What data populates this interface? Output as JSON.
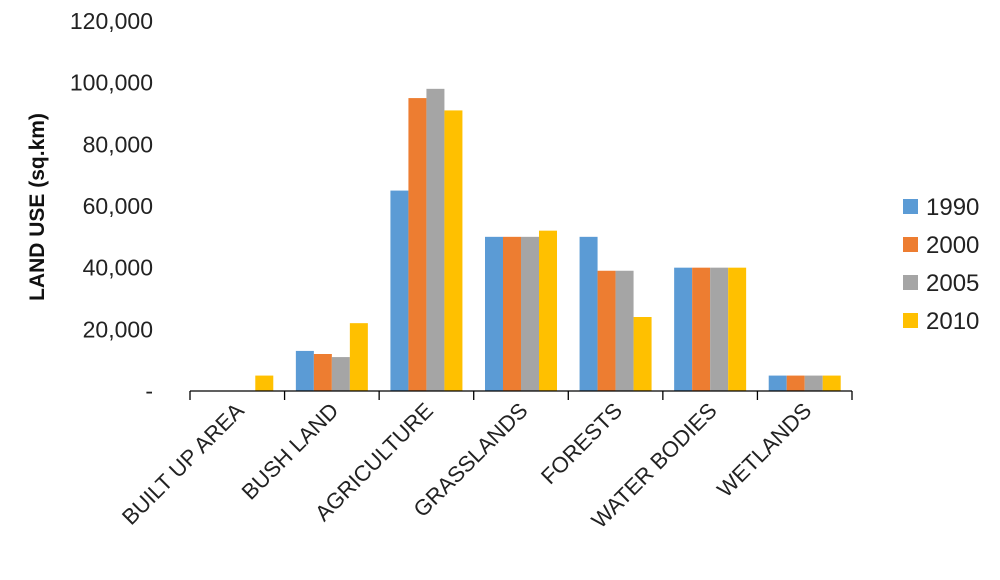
{
  "chart_data": {
    "type": "bar",
    "title": "",
    "xlabel": "",
    "ylabel": "LAND USE (sq.km)",
    "ylim": [
      0,
      120000
    ],
    "yticks": [
      0,
      20000,
      40000,
      60000,
      80000,
      100000,
      120000
    ],
    "ytick_labels": [
      "-",
      "20,000",
      "40,000",
      "60,000",
      "80,000",
      "100,000",
      "120,000"
    ],
    "grid": false,
    "legend_position": "right",
    "categories": [
      "BUILT UP AREA",
      "BUSH LAND",
      "AGRICULTURE",
      "GRASSLANDS",
      "FORESTS",
      "WATER BODIES",
      "WETLANDS"
    ],
    "series": [
      {
        "name": "1990",
        "color": "#5B9BD5",
        "values": [
          0,
          13000,
          65000,
          50000,
          50000,
          40000,
          5000
        ]
      },
      {
        "name": "2000",
        "color": "#ED7D31",
        "values": [
          0,
          12000,
          95000,
          50000,
          39000,
          40000,
          5000
        ]
      },
      {
        "name": "2005",
        "color": "#A5A5A5",
        "values": [
          0,
          11000,
          98000,
          50000,
          39000,
          40000,
          5000
        ]
      },
      {
        "name": "2010",
        "color": "#FFC000",
        "values": [
          5000,
          22000,
          91000,
          52000,
          24000,
          40000,
          5000
        ]
      }
    ]
  }
}
